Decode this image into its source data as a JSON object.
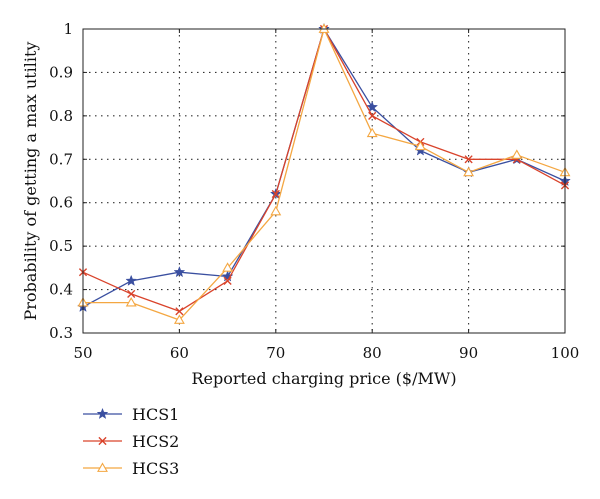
{
  "chart_data": {
    "type": "line",
    "xlabel": "Reported charging price ($/MW)",
    "ylabel": "Probability of getting a max utility",
    "xlim": [
      50,
      100
    ],
    "ylim": [
      0.3,
      1
    ],
    "xticks": [
      50,
      60,
      70,
      80,
      90,
      100
    ],
    "yticks": [
      0.3,
      0.4,
      0.5,
      0.6,
      0.7,
      0.8,
      0.9,
      1
    ],
    "ytick_labels": [
      "0.3",
      "0.4",
      "0.5",
      "0.6",
      "0.7",
      "0.8",
      "0.9",
      "1"
    ],
    "grid": true,
    "legend_position": "below",
    "x": [
      50,
      55,
      60,
      65,
      70,
      75,
      80,
      85,
      90,
      95,
      100
    ],
    "series": [
      {
        "name": "HCS1",
        "color": "#3a4fa0",
        "marker": "star",
        "values": [
          0.36,
          0.42,
          0.44,
          0.43,
          0.62,
          1.0,
          0.82,
          0.72,
          0.67,
          0.7,
          0.65
        ]
      },
      {
        "name": "HCS2",
        "color": "#d9432b",
        "marker": "cross",
        "values": [
          0.44,
          0.39,
          0.35,
          0.42,
          0.62,
          1.0,
          0.8,
          0.74,
          0.7,
          0.7,
          0.64
        ]
      },
      {
        "name": "HCS3",
        "color": "#f4a742",
        "marker": "triangle",
        "values": [
          0.37,
          0.37,
          0.33,
          0.45,
          0.58,
          1.0,
          0.76,
          0.73,
          0.67,
          0.71,
          0.67
        ]
      }
    ]
  }
}
